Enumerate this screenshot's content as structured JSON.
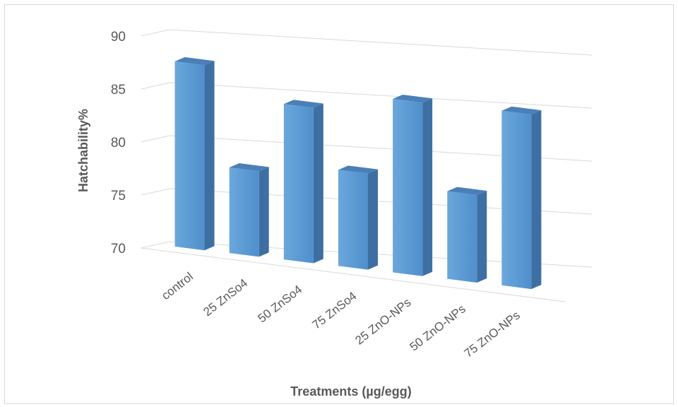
{
  "chart_data": {
    "type": "bar",
    "style": "3d-column",
    "categories": [
      "control",
      "25 ZnSo4",
      "50 ZnSo4",
      "75 ZnSo4",
      "25 ZnO-NPs",
      "50 ZnO-NPs",
      "75 ZnO-NPs"
    ],
    "values": [
      87.2,
      77.8,
      84.4,
      78.8,
      86.1,
      78.0,
      86.2
    ],
    "xlabel": "Treatments (µg/egg)",
    "ylabel": "Hatchability%",
    "ylim": [
      70,
      90
    ],
    "yticks": [
      "70",
      "75",
      "80",
      "85",
      "90"
    ],
    "grid": true,
    "legend": "none",
    "colors": {
      "bar_front": "#5b9bd5",
      "bar_side": "#3e6fa3",
      "bar_top": "#4a7fb8",
      "grid": "#d9d9d9",
      "text": "#595959"
    }
  }
}
